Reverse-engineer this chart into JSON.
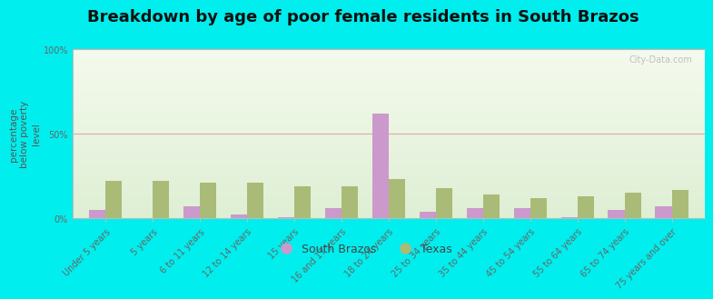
{
  "title": "Breakdown by age of poor female residents in South Brazos",
  "ylabel": "percentage\nbelow poverty\nlevel",
  "categories": [
    "Under 5 years",
    "5 years",
    "6 to 11 years",
    "12 to 14 years",
    "15 years",
    "16 and 17 years",
    "18 to 24 years",
    "25 to 34 years",
    "35 to 44 years",
    "45 to 54 years",
    "55 to 64 years",
    "65 to 74 years",
    "75 years and over"
  ],
  "south_brazos": [
    5,
    0,
    7,
    2,
    0.5,
    6,
    62,
    4,
    6,
    6,
    0.5,
    5,
    7
  ],
  "texas": [
    22,
    22,
    21,
    21,
    19,
    19,
    23,
    18,
    14,
    12,
    13,
    15,
    17
  ],
  "south_brazos_color": "#cc99cc",
  "texas_color": "#aabb77",
  "background_color": "#00eeee",
  "plot_bg_color": "#eef5e8",
  "ylim": [
    0,
    100
  ],
  "yticks": [
    0,
    50,
    100
  ],
  "ytick_labels": [
    "0%",
    "50%",
    "100%"
  ],
  "bar_width": 0.35,
  "title_fontsize": 13,
  "axis_label_fontsize": 7.5,
  "tick_fontsize": 7,
  "legend_fontsize": 9,
  "watermark": "City-Data.com"
}
